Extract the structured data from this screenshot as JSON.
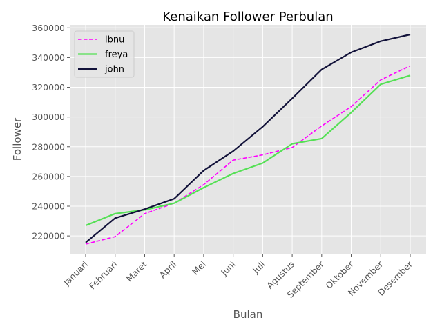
{
  "chart_data": {
    "type": "line",
    "title": "Kenaikan Follower Perbulan",
    "xlabel": "Bulan",
    "ylabel": "Follower",
    "categories": [
      "Januari",
      "Februari",
      "Maret",
      "April",
      "Mei",
      "Juni",
      "Juli",
      "Agustus",
      "September",
      "Oktober",
      "November",
      "Desember"
    ],
    "ylim": [
      208000,
      362000
    ],
    "yticks": [
      220000,
      240000,
      260000,
      280000,
      300000,
      320000,
      340000,
      360000
    ],
    "grid": true,
    "legend_position": "top-left",
    "series": [
      {
        "name": "ibnu",
        "color": "#ff00ff",
        "style": "dashed",
        "values": [
          214500,
          219500,
          235000,
          242000,
          254500,
          271000,
          274500,
          279500,
          294000,
          307000,
          325000,
          334500
        ]
      },
      {
        "name": "freya",
        "color": "#55e055",
        "style": "solid",
        "values": [
          227000,
          235000,
          237500,
          242000,
          252500,
          262000,
          269000,
          282000,
          285500,
          303000,
          322000,
          328000
        ]
      },
      {
        "name": "john",
        "color": "#12123a",
        "style": "solid",
        "values": [
          215500,
          232000,
          238000,
          245000,
          264000,
          277000,
          293500,
          312500,
          332000,
          343500,
          351000,
          355500
        ]
      }
    ]
  }
}
